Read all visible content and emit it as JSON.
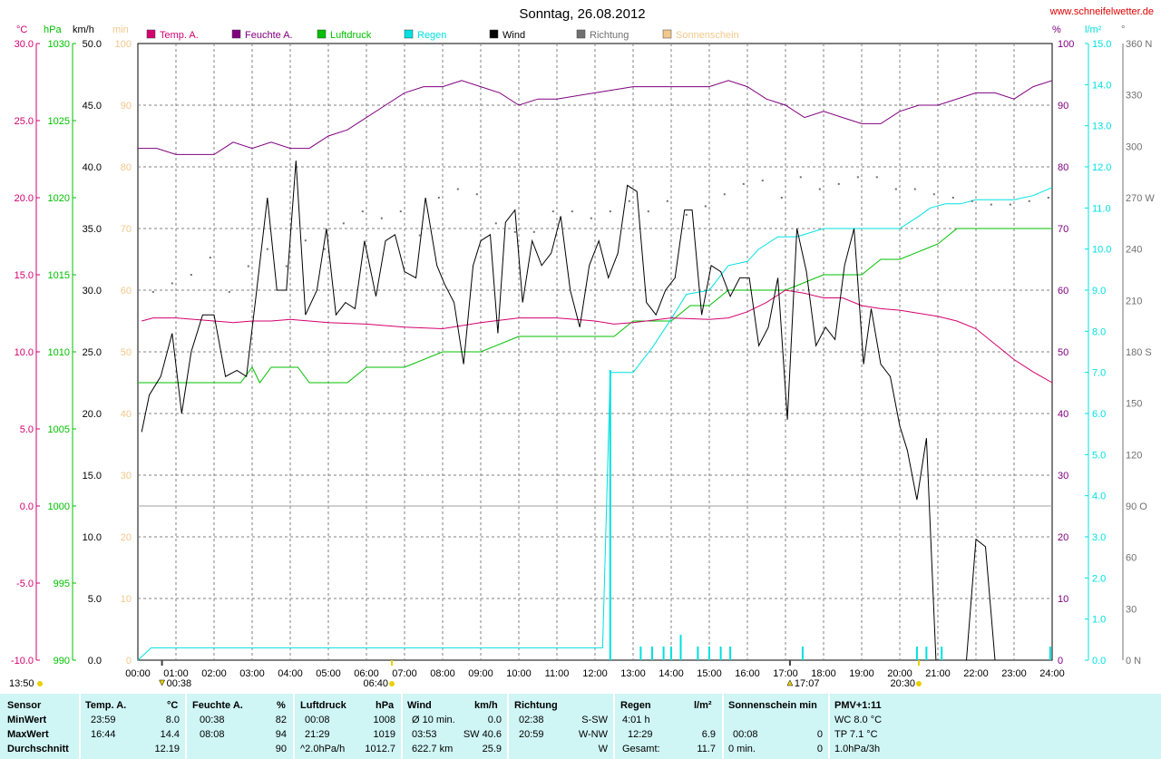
{
  "title": "Sonntag, 26.08.2012",
  "website": "www.schneifelwetter.de",
  "colors": {
    "temp": "#d4006f",
    "humidity": "#800080",
    "pressure": "#00c000",
    "rain": "#00e0e0",
    "wind": "#000000",
    "direction": "#707070",
    "sunshine": "#f2c88c",
    "grid": "#808080",
    "panel_bg": "#cff5f5"
  },
  "axes": {
    "temp_unit": "°C",
    "pressure_unit": "hPa",
    "wind_unit": "km/h",
    "sun_unit": "min",
    "humidity_unit": "%",
    "rain_unit": "l/m²",
    "dir_unit": "°",
    "temp_ticks": [
      "30.0",
      "25.0",
      "20.0",
      "15.0",
      "10.0",
      "5.0",
      "0.0",
      "-5.0",
      "-10.0"
    ],
    "pressure_ticks": [
      "1030",
      "1025",
      "1020",
      "1015",
      "1010",
      "1005",
      "1000",
      "995",
      "990"
    ],
    "wind_ticks": [
      "50.0",
      "45.0",
      "40.0",
      "35.0",
      "30.0",
      "25.0",
      "20.0",
      "15.0",
      "10.0",
      "5.0",
      "0.0"
    ],
    "sun_ticks": [
      "100",
      "90",
      "80",
      "70",
      "60",
      "50",
      "40",
      "30",
      "20",
      "10",
      "0"
    ],
    "humidity_ticks": [
      "100",
      "90",
      "80",
      "70",
      "60",
      "50",
      "40",
      "30",
      "20",
      "10",
      "0"
    ],
    "rain_ticks": [
      "15.0",
      "14.0",
      "13.0",
      "12.0",
      "11.0",
      "10.0",
      "9.0",
      "8.0",
      "7.0",
      "6.0",
      "5.0",
      "4.0",
      "3.0",
      "2.0",
      "1.0",
      "0.0"
    ],
    "dir_ticks": [
      "360 N",
      "330",
      "300",
      "270 W",
      "240",
      "210",
      "180 S",
      "150",
      "120",
      "90 O",
      "60",
      "30",
      "0 N"
    ],
    "time_ticks": [
      "00:00",
      "01:00",
      "02:00",
      "03:00",
      "04:00",
      "05:00",
      "06:00",
      "07:00",
      "08:00",
      "09:00",
      "10:00",
      "11:00",
      "12:00",
      "13:00",
      "14:00",
      "15:00",
      "16:00",
      "17:00",
      "18:00",
      "19:00",
      "20:00",
      "21:00",
      "22:00",
      "23:00",
      "24:00"
    ]
  },
  "legend": [
    {
      "label": "Temp. A.",
      "color": "#d4006f"
    },
    {
      "label": "Feuchte A.",
      "color": "#800080"
    },
    {
      "label": "Luftdruck",
      "color": "#00c000"
    },
    {
      "label": "Regen",
      "color": "#00e0e0"
    },
    {
      "label": "Wind",
      "color": "#000000"
    },
    {
      "label": "Richtung",
      "color": "#707070"
    },
    {
      "label": "Sonnenschein",
      "color": "#f2c88c"
    }
  ],
  "markers": {
    "extra_time": "13:50",
    "events": [
      {
        "time": "00:38",
        "hour": 0.633,
        "symbol": "down"
      },
      {
        "time": "06:40",
        "hour": 6.667,
        "symbol": "sun"
      },
      {
        "time": "17:07",
        "hour": 17.117,
        "symbol": "up"
      },
      {
        "time": "20:30",
        "hour": 20.5,
        "symbol": "sun"
      }
    ]
  },
  "chart_data": {
    "type": "line",
    "x_unit": "hour",
    "xlim": [
      0,
      24
    ],
    "series": [
      {
        "name": "Temp. A.",
        "unit": "°C",
        "ylim": [
          -10,
          30
        ],
        "x": [
          0.1,
          0.4,
          1,
          2,
          2.5,
          3,
          3.5,
          4,
          4.5,
          5,
          6,
          7,
          8,
          9,
          10,
          11,
          12,
          12.5,
          13,
          14,
          15,
          15.5,
          16,
          16.5,
          17,
          17.5,
          18,
          18.5,
          19,
          19.5,
          20,
          20.5,
          21,
          21.5,
          22,
          22.5,
          23,
          23.5,
          24
        ],
        "y": [
          12.0,
          12.2,
          12.2,
          12.0,
          11.9,
          12.0,
          12.0,
          12.1,
          12.0,
          11.9,
          11.8,
          11.6,
          11.5,
          11.9,
          12.2,
          12.2,
          12.0,
          11.8,
          11.9,
          12.2,
          12.1,
          12.2,
          12.6,
          13.2,
          14.0,
          13.8,
          13.5,
          13.5,
          13.0,
          12.8,
          12.7,
          12.5,
          12.3,
          12.0,
          11.5,
          10.5,
          9.5,
          8.7,
          8.0
        ]
      },
      {
        "name": "Feuchte A.",
        "unit": "%",
        "ylim": [
          0,
          100
        ],
        "x": [
          0,
          0.5,
          1,
          2,
          2.5,
          3,
          3.5,
          4,
          4.5,
          5,
          5.5,
          6,
          6.5,
          7,
          7.5,
          8,
          8.5,
          9,
          9.5,
          10,
          10.5,
          11,
          12,
          13,
          14,
          15,
          15.5,
          16,
          16.5,
          17,
          17.5,
          18,
          18.5,
          19,
          19.5,
          20,
          20.5,
          21,
          22,
          22.5,
          23,
          23.5,
          24
        ],
        "y": [
          83,
          83,
          82,
          82,
          84,
          83,
          84,
          83,
          83,
          85,
          86,
          88,
          90,
          92,
          93,
          93,
          94,
          93,
          92,
          90,
          91,
          91,
          92,
          93,
          93,
          93,
          94,
          93,
          91,
          90,
          88,
          89,
          88,
          87,
          87,
          89,
          90,
          90,
          92,
          92,
          91,
          93,
          94
        ]
      },
      {
        "name": "Luftdruck",
        "unit": "hPa",
        "ylim": [
          990,
          1030
        ],
        "x": [
          0,
          2.7,
          3.0,
          3.2,
          3.5,
          4,
          4.2,
          4.5,
          5,
          5.5,
          6,
          7,
          8,
          9,
          10,
          11,
          12,
          12.5,
          13,
          13.5,
          14,
          14.5,
          15,
          15.5,
          16,
          17,
          18,
          19,
          19.5,
          20,
          21,
          21.5,
          22,
          23,
          24
        ],
        "y": [
          1008,
          1008,
          1009,
          1008,
          1009,
          1009,
          1009,
          1008,
          1008,
          1008,
          1009,
          1009,
          1010,
          1010,
          1011,
          1011,
          1011,
          1011,
          1012,
          1012,
          1012,
          1013,
          1013,
          1014,
          1014,
          1014,
          1015,
          1015,
          1016,
          1016,
          1017,
          1018,
          1018,
          1018,
          1018
        ]
      },
      {
        "name": "Regen",
        "unit": "l/m²",
        "ylim": [
          0,
          15
        ],
        "x": [
          0,
          0.35,
          12.2,
          12.4,
          12.5,
          13.0,
          13.5,
          14.0,
          14.4,
          15.0,
          15.5,
          16.0,
          16.3,
          16.8,
          17.3,
          18.0,
          18.5,
          19.0,
          20.0,
          20.5,
          20.8,
          21.2,
          21.6,
          22.0,
          22.5,
          23.0,
          23.5,
          24
        ],
        "y": [
          0,
          0.3,
          0.3,
          7.0,
          7.0,
          7.0,
          7.6,
          8.3,
          8.9,
          9.0,
          9.6,
          9.7,
          10.0,
          10.3,
          10.3,
          10.5,
          10.5,
          10.5,
          10.5,
          10.8,
          11.0,
          11.1,
          11.1,
          11.2,
          11.2,
          11.2,
          11.3,
          11.5
        ]
      },
      {
        "name": "Wind",
        "unit": "km/h",
        "ylim": [
          0,
          50
        ],
        "x": [
          0.1,
          0.3,
          0.6,
          0.9,
          1.15,
          1.4,
          1.7,
          2.0,
          2.3,
          2.6,
          2.85,
          3.1,
          3.4,
          3.65,
          3.9,
          4.15,
          4.4,
          4.7,
          4.95,
          5.2,
          5.45,
          5.7,
          5.95,
          6.25,
          6.5,
          6.75,
          7.0,
          7.3,
          7.55,
          7.85,
          8.05,
          8.3,
          8.55,
          8.8,
          9.0,
          9.25,
          9.45,
          9.65,
          9.9,
          10.1,
          10.35,
          10.6,
          10.85,
          11.1,
          11.35,
          11.6,
          11.85,
          12.1,
          12.35,
          12.6,
          12.85,
          13.1,
          13.35,
          13.6,
          13.85,
          14.1,
          14.35,
          14.55,
          14.8,
          15.05,
          15.3,
          15.55,
          15.8,
          16.05,
          16.3,
          16.55,
          16.8,
          17.05,
          17.3,
          17.55,
          17.8,
          18.05,
          18.3,
          18.55,
          18.8,
          19.05,
          19.25,
          19.5,
          19.75,
          20.0,
          20.2,
          20.45,
          20.7,
          20.95,
          21.2,
          21.5,
          21.75,
          22.0,
          22.25,
          22.5
        ],
        "y": [
          18.5,
          21.5,
          23.0,
          26.5,
          20.0,
          25.0,
          28.0,
          28.0,
          23.0,
          23.5,
          23.0,
          29.5,
          37.5,
          30.0,
          30.0,
          40.5,
          28.0,
          30.0,
          35.0,
          28.0,
          29.0,
          28.5,
          34.0,
          29.5,
          34.0,
          34.5,
          31.5,
          31.0,
          37.5,
          32.0,
          30.5,
          29.0,
          24.0,
          32.0,
          34.0,
          34.5,
          26.5,
          35.5,
          36.5,
          29.0,
          34.0,
          32.0,
          33.0,
          36.0,
          30.0,
          27.0,
          32.0,
          34.0,
          31.0,
          33.0,
          38.5,
          38.0,
          29.0,
          28.0,
          30.0,
          31.0,
          36.5,
          36.5,
          28.0,
          32.0,
          31.5,
          29.5,
          31.0,
          31.0,
          25.5,
          27.0,
          31.0,
          19.5,
          35.0,
          31.5,
          25.5,
          27.0,
          26.0,
          32.0,
          35.0,
          24.0,
          28.5,
          24.0,
          23.0,
          19.0,
          17.0,
          13.0,
          18.0,
          0.0,
          0.0,
          0.0,
          0.0,
          9.8,
          9.2,
          0.0
        ]
      },
      {
        "name": "Richtung",
        "unit": "°",
        "ylim": [
          0,
          360
        ],
        "x": [
          0.4,
          0.9,
          1.4,
          1.9,
          2.4,
          2.9,
          3.4,
          3.9,
          4.4,
          4.9,
          5.4,
          5.9,
          6.4,
          6.9,
          7.4,
          7.9,
          8.4,
          8.9,
          9.4,
          9.9,
          10.4,
          10.9,
          11.4,
          11.9,
          12.4,
          12.9,
          13.4,
          13.9,
          14.4,
          14.9,
          15.4,
          15.9,
          16.4,
          16.9,
          17.4,
          17.9,
          18.4,
          18.9,
          19.4,
          19.9,
          20.4,
          20.9,
          21.4,
          21.9,
          22.4,
          22.9,
          23.4,
          23.9
        ],
        "y": [
          215,
          220,
          225,
          235,
          215,
          230,
          240,
          230,
          245,
          240,
          255,
          262,
          258,
          262,
          248,
          270,
          275,
          272,
          255,
          250,
          250,
          262,
          262,
          258,
          262,
          268,
          262,
          268,
          260,
          265,
          272,
          278,
          280,
          270,
          282,
          275,
          278,
          282,
          282,
          275,
          275,
          272,
          270,
          268,
          266,
          266,
          268,
          270
        ]
      },
      {
        "name": "Sonnenschein",
        "unit": "min",
        "ylim": [
          0,
          100
        ],
        "x": [],
        "y": []
      }
    ]
  },
  "stats": {
    "sensor_header": "Sensor",
    "row_labels": [
      "MinWert",
      "MaxWert",
      "Durchschnitt"
    ],
    "temp": {
      "header": "Temp. A.",
      "unit": "°C",
      "min_time": "23:59",
      "min": "8.0",
      "max_time": "16:44",
      "max": "14.4",
      "avg": "12.19"
    },
    "humidity": {
      "header": "Feuchte A.",
      "unit": "%",
      "min_time": "00:38",
      "min": "82",
      "max_time": "08:08",
      "max": "94",
      "avg": "90"
    },
    "pressure": {
      "header": "Luftdruck",
      "unit": "hPa",
      "min_time": "00:08",
      "min": "1008",
      "max_time": "21:29",
      "max": "1019",
      "trend": "^2.0hPa/h",
      "avg": "1012.7"
    },
    "wind": {
      "header": "Wind",
      "unit": "km/h",
      "min_label": "Ø 10 min.",
      "min": "0.0",
      "max_time": "03:53",
      "max": "SW 40.6",
      "distance": "622.7 km",
      "avg": "25.9"
    },
    "direction": {
      "header": "Richtung",
      "min_time": "02:38",
      "min": "S-SW",
      "max_time": "20:59",
      "max": "W-NW",
      "avg": "W"
    },
    "rain": {
      "header": "Regen",
      "unit": "l/m²",
      "min_time": "4:01 h",
      "max_time": "12:29",
      "max": "6.9",
      "total_label": "Gesamt:",
      "total": "11.7"
    },
    "sunshine": {
      "header": "Sonnenschein min",
      "max_time": "00:08",
      "max": "0",
      "total_label": "0 min.",
      "total": "0"
    },
    "pmv": {
      "header": "PMV+1:11",
      "min": "WC 8.0 °C",
      "max": "TP 7.1 °C",
      "avg": "1.0hPa/3h"
    }
  }
}
